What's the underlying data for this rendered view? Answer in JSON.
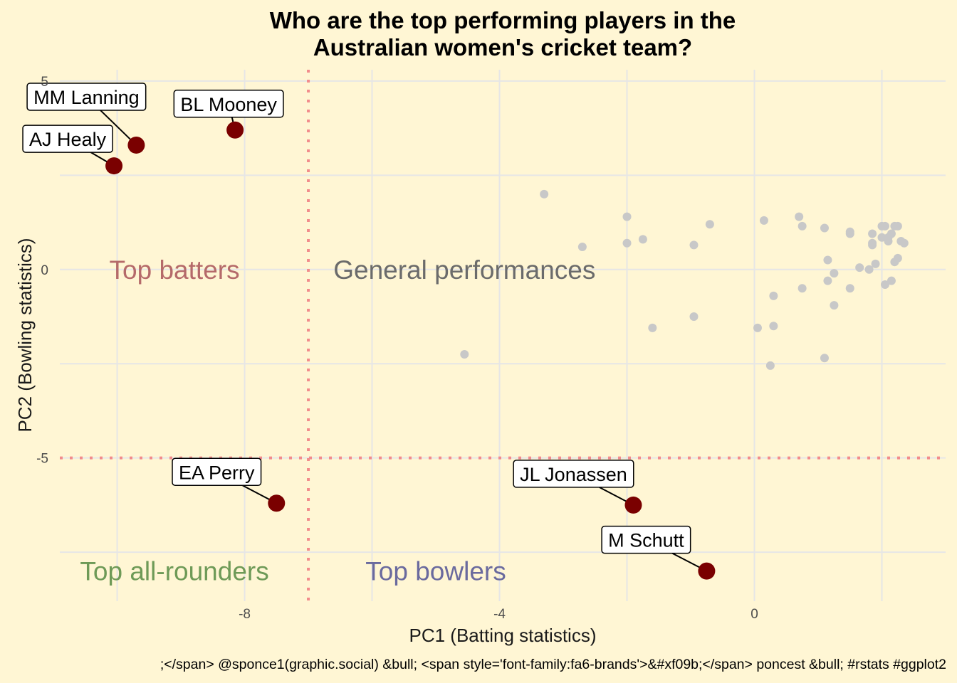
{
  "chart_data": {
    "type": "scatter",
    "title": [
      "Who are the top performing players in the",
      "Australian women's cricket team?"
    ],
    "xlabel": "PC1 (Batting statistics)",
    "ylabel": "PC2 (Bowling statistics)",
    "xlim": [
      -10.9,
      3.0
    ],
    "ylim": [
      -8.8,
      5.3
    ],
    "x_ticks": [
      -8,
      -4,
      0
    ],
    "y_ticks": [
      5,
      0,
      -5
    ],
    "grid": true,
    "reference_lines": [
      {
        "axis": "x",
        "value": -7.0,
        "color": "#F28C8C"
      },
      {
        "axis": "y",
        "value": -5.0,
        "color": "#F28C8C"
      }
    ],
    "highlight_color": "#7A0000",
    "other_color": "#C8C8C8",
    "highlighted_players": [
      {
        "name": "MM Lanning",
        "x": -9.7,
        "y": 3.3
      },
      {
        "name": "AJ Healy",
        "x": -10.05,
        "y": 2.75
      },
      {
        "name": "BL Mooney",
        "x": -8.15,
        "y": 3.7
      },
      {
        "name": "EA Perry",
        "x": -7.5,
        "y": -6.2
      },
      {
        "name": "JL Jonassen",
        "x": -1.9,
        "y": -6.25
      },
      {
        "name": "M Schutt",
        "x": -0.75,
        "y": -8.0
      }
    ],
    "other_players": [
      {
        "x": -3.3,
        "y": 2.0
      },
      {
        "x": -2.7,
        "y": 0.6
      },
      {
        "x": -2.0,
        "y": 1.4
      },
      {
        "x": -2.0,
        "y": 0.7
      },
      {
        "x": -1.75,
        "y": 0.8
      },
      {
        "x": -0.95,
        "y": 0.65
      },
      {
        "x": -0.7,
        "y": 1.2
      },
      {
        "x": 0.15,
        "y": 1.3
      },
      {
        "x": 0.7,
        "y": 1.4
      },
      {
        "x": 0.75,
        "y": 1.15
      },
      {
        "x": 1.1,
        "y": 1.1
      },
      {
        "x": 1.5,
        "y": 1.0
      },
      {
        "x": 1.5,
        "y": 0.95
      },
      {
        "x": 1.85,
        "y": 0.95
      },
      {
        "x": 1.85,
        "y": 0.7
      },
      {
        "x": 1.85,
        "y": 0.65
      },
      {
        "x": 2.0,
        "y": 1.15
      },
      {
        "x": 2.05,
        "y": 1.15
      },
      {
        "x": 2.1,
        "y": 0.85
      },
      {
        "x": 2.15,
        "y": 0.95
      },
      {
        "x": 2.2,
        "y": 1.15
      },
      {
        "x": 2.25,
        "y": 1.15
      },
      {
        "x": 2.3,
        "y": 0.75
      },
      {
        "x": 2.35,
        "y": 0.7
      },
      {
        "x": 2.0,
        "y": 0.85
      },
      {
        "x": 2.1,
        "y": 0.75
      },
      {
        "x": 1.15,
        "y": 0.25
      },
      {
        "x": 1.25,
        "y": -0.1
      },
      {
        "x": 1.15,
        "y": -0.3
      },
      {
        "x": 1.65,
        "y": 0.05
      },
      {
        "x": 1.8,
        "y": 0.0
      },
      {
        "x": 1.9,
        "y": 0.15
      },
      {
        "x": 2.05,
        "y": -0.4
      },
      {
        "x": 2.15,
        "y": -0.3
      },
      {
        "x": 2.2,
        "y": 0.2
      },
      {
        "x": 2.25,
        "y": 0.3
      },
      {
        "x": 1.5,
        "y": -0.5
      },
      {
        "x": 0.75,
        "y": -0.5
      },
      {
        "x": 0.3,
        "y": -0.7
      },
      {
        "x": 1.25,
        "y": -0.95
      },
      {
        "x": -0.95,
        "y": -1.25
      },
      {
        "x": -1.6,
        "y": -1.55
      },
      {
        "x": 0.05,
        "y": -1.55
      },
      {
        "x": 0.3,
        "y": -1.5
      },
      {
        "x": 1.1,
        "y": -2.35
      },
      {
        "x": 0.25,
        "y": -2.55
      },
      {
        "x": -4.55,
        "y": -2.25
      }
    ],
    "quadrant_labels": [
      {
        "text": "Top batters",
        "x": -9.1,
        "y": 0.0,
        "color": "#B56A6A"
      },
      {
        "text": "General performances",
        "x": -4.55,
        "y": 0.0,
        "color": "#6B6B6B"
      },
      {
        "text": "Top all-rounders",
        "x": -9.1,
        "y": -8.0,
        "color": "#6E9A57"
      },
      {
        "text": "Top bowlers",
        "x": -5.0,
        "y": -8.0,
        "color": "#6A6A9E"
      }
    ],
    "caption": ";</span> @sponce1(graphic.social) &bull; <span style='font-family:fa6-brands'>&#xf09b;</span> poncest &bull; #rstats #ggplot2"
  }
}
